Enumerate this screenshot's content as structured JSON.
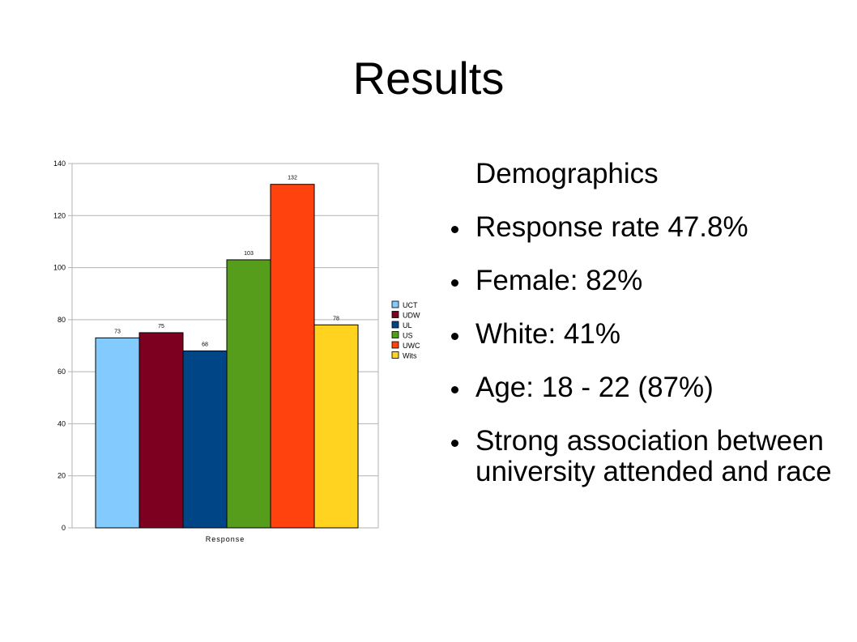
{
  "slide": {
    "title": "Results",
    "heading": "Demographics",
    "bullets": [
      "Response rate 47.8%",
      "Female: 82%",
      "White: 41%",
      "Age: 18 - 22 (87%)",
      "Strong association between university attended and race"
    ]
  },
  "chart_data": {
    "type": "bar",
    "categories": [
      "Response"
    ],
    "xlabel": "Response",
    "ylabel": "",
    "ylim": [
      0,
      140
    ],
    "yticks": [
      0,
      20,
      40,
      60,
      80,
      100,
      120,
      140
    ],
    "grid": true,
    "legend_position": "right",
    "series": [
      {
        "name": "UCT",
        "values": [
          73
        ],
        "color": "#83caff"
      },
      {
        "name": "UDW",
        "values": [
          75
        ],
        "color": "#7e0021"
      },
      {
        "name": "UL",
        "values": [
          68
        ],
        "color": "#004586"
      },
      {
        "name": "US",
        "values": [
          103
        ],
        "color": "#579d1c"
      },
      {
        "name": "UWC",
        "values": [
          132
        ],
        "color": "#ff420e"
      },
      {
        "name": "Wits",
        "values": [
          78
        ],
        "color": "#ffd320"
      }
    ]
  }
}
